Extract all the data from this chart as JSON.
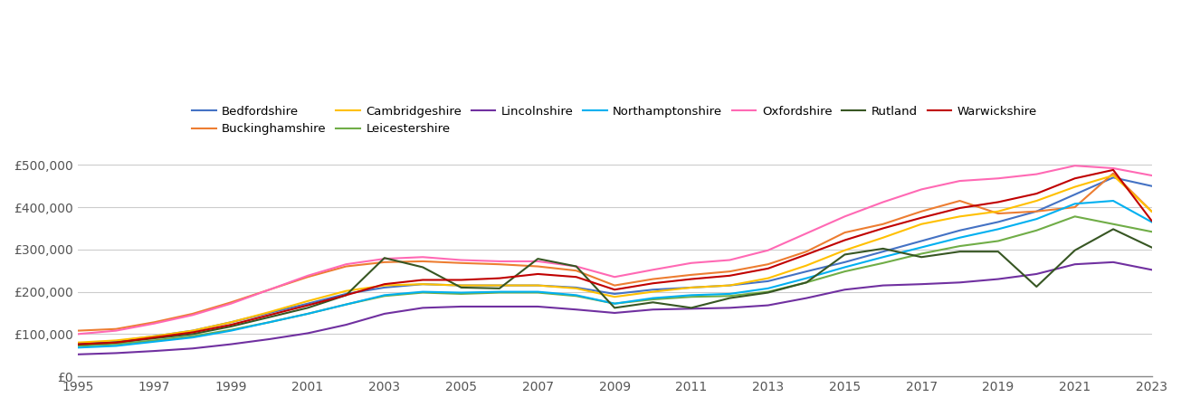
{
  "years": [
    1995,
    1996,
    1997,
    1998,
    1999,
    2000,
    2001,
    2002,
    2003,
    2004,
    2005,
    2006,
    2007,
    2008,
    2009,
    2010,
    2011,
    2012,
    2013,
    2014,
    2015,
    2016,
    2017,
    2018,
    2019,
    2020,
    2021,
    2022,
    2023
  ],
  "series": {
    "Bedfordshire": {
      "color": "#4472C4",
      "values": [
        78000,
        83000,
        95000,
        108000,
        128000,
        150000,
        172000,
        195000,
        210000,
        218000,
        215000,
        215000,
        215000,
        210000,
        195000,
        205000,
        210000,
        215000,
        225000,
        248000,
        270000,
        295000,
        320000,
        345000,
        365000,
        390000,
        430000,
        470000,
        450000
      ]
    },
    "Buckinghamshire": {
      "color": "#ED7D31",
      "values": [
        108000,
        112000,
        128000,
        148000,
        175000,
        205000,
        235000,
        260000,
        270000,
        272000,
        268000,
        265000,
        260000,
        250000,
        215000,
        230000,
        240000,
        248000,
        265000,
        295000,
        340000,
        360000,
        390000,
        415000,
        385000,
        390000,
        400000,
        480000,
        390000
      ]
    },
    "Cambridgeshire": {
      "color": "#FFC000",
      "values": [
        80000,
        85000,
        95000,
        108000,
        128000,
        152000,
        178000,
        202000,
        215000,
        218000,
        215000,
        215000,
        215000,
        208000,
        188000,
        200000,
        210000,
        215000,
        232000,
        262000,
        298000,
        328000,
        360000,
        378000,
        390000,
        415000,
        448000,
        475000,
        390000
      ]
    },
    "Leicestershire": {
      "color": "#70AD47",
      "values": [
        72000,
        76000,
        85000,
        95000,
        110000,
        128000,
        148000,
        170000,
        190000,
        198000,
        195000,
        198000,
        198000,
        190000,
        172000,
        182000,
        188000,
        190000,
        200000,
        222000,
        248000,
        268000,
        290000,
        308000,
        320000,
        345000,
        378000,
        360000,
        342000
      ]
    },
    "Lincolnshire": {
      "color": "#7030A0",
      "values": [
        52000,
        55000,
        60000,
        66000,
        76000,
        88000,
        102000,
        122000,
        148000,
        162000,
        165000,
        165000,
        165000,
        158000,
        150000,
        158000,
        160000,
        162000,
        168000,
        185000,
        205000,
        215000,
        218000,
        222000,
        230000,
        242000,
        265000,
        270000,
        252000
      ]
    },
    "Northamptonshire": {
      "color": "#00B0F0",
      "values": [
        68000,
        72000,
        82000,
        92000,
        108000,
        128000,
        148000,
        170000,
        192000,
        200000,
        198000,
        200000,
        200000,
        192000,
        172000,
        185000,
        192000,
        195000,
        208000,
        232000,
        258000,
        282000,
        305000,
        328000,
        348000,
        372000,
        408000,
        415000,
        365000
      ]
    },
    "Oxfordshire": {
      "color": "#FF69B4",
      "values": [
        100000,
        108000,
        125000,
        145000,
        172000,
        205000,
        238000,
        265000,
        278000,
        282000,
        275000,
        272000,
        272000,
        260000,
        235000,
        252000,
        268000,
        275000,
        298000,
        338000,
        378000,
        412000,
        442000,
        462000,
        468000,
        478000,
        498000,
        492000,
        475000
      ]
    },
    "Rutland": {
      "color": "#375623",
      "values": [
        75000,
        80000,
        90000,
        100000,
        118000,
        140000,
        162000,
        192000,
        280000,
        258000,
        210000,
        208000,
        278000,
        260000,
        162000,
        175000,
        162000,
        185000,
        198000,
        222000,
        288000,
        302000,
        282000,
        295000,
        295000,
        212000,
        298000,
        348000,
        305000
      ]
    },
    "Warwickshire": {
      "color": "#C00000",
      "values": [
        76000,
        80000,
        92000,
        104000,
        122000,
        145000,
        168000,
        192000,
        218000,
        228000,
        228000,
        232000,
        242000,
        235000,
        205000,
        220000,
        230000,
        238000,
        255000,
        288000,
        322000,
        350000,
        375000,
        398000,
        412000,
        432000,
        468000,
        488000,
        368000
      ]
    }
  },
  "ylim": [
    0,
    520000
  ],
  "yticks": [
    0,
    100000,
    200000,
    300000,
    400000,
    500000
  ],
  "ytick_labels": [
    "£0",
    "£100,000",
    "£200,000",
    "£300,000",
    "£400,000",
    "£500,000"
  ],
  "xtick_every": 2,
  "background_color": "#ffffff",
  "grid_color": "#cccccc",
  "legend_row1": [
    "Bedfordshire",
    "Buckinghamshire",
    "Cambridgeshire",
    "Leicestershire",
    "Lincolnshire",
    "Northamptonshire",
    "Oxfordshire"
  ],
  "legend_row2": [
    "Rutland",
    "Warwickshire"
  ],
  "legend_order": [
    "Bedfordshire",
    "Buckinghamshire",
    "Cambridgeshire",
    "Leicestershire",
    "Lincolnshire",
    "Northamptonshire",
    "Oxfordshire",
    "Rutland",
    "Warwickshire"
  ]
}
